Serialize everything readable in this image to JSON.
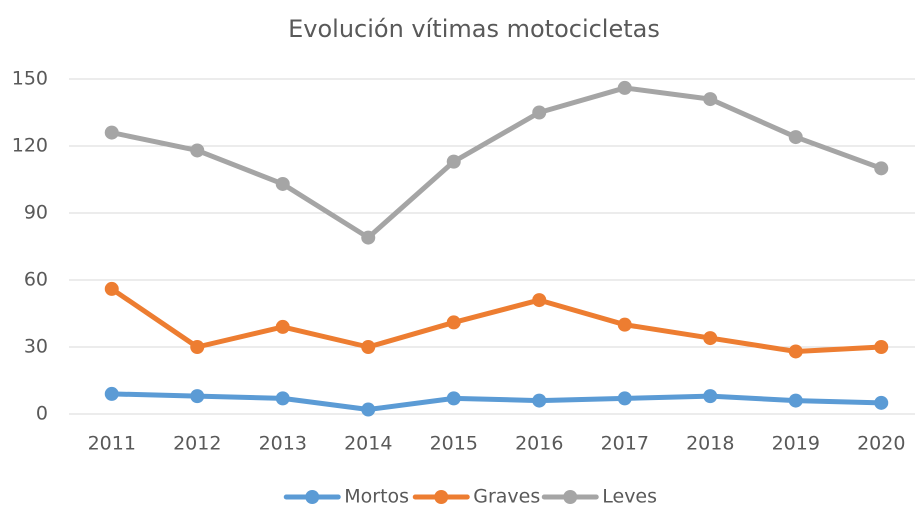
{
  "chart_data": {
    "type": "line",
    "title": "Evolución vítimas motocicletas",
    "categories": [
      "2011",
      "2012",
      "2013",
      "2014",
      "2015",
      "2016",
      "2017",
      "2018",
      "2019",
      "2020"
    ],
    "series": [
      {
        "name": "Mortos",
        "color": "#5b9bd5",
        "values": [
          9,
          8,
          7,
          2,
          7,
          6,
          7,
          8,
          6,
          5
        ]
      },
      {
        "name": "Graves",
        "color": "#ed7d31",
        "values": [
          56,
          30,
          39,
          30,
          41,
          51,
          40,
          34,
          28,
          30
        ]
      },
      {
        "name": "Leves",
        "color": "#a5a5a5",
        "values": [
          126,
          118,
          103,
          79,
          113,
          135,
          146,
          141,
          124,
          110
        ]
      }
    ],
    "ylim": [
      0,
      150
    ],
    "yticks": [
      0,
      30,
      60,
      90,
      120,
      150
    ],
    "grid": true,
    "legend": "bottom"
  }
}
